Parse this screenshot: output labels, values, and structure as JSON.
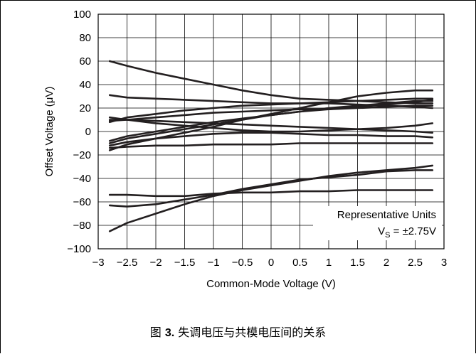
{
  "chart_data": {
    "type": "line",
    "xlabel": "Common-Mode Voltage (V)",
    "ylabel": "Offset Voltage (μV)",
    "xlim": [
      -3,
      3
    ],
    "ylim": [
      -100,
      100
    ],
    "x_ticks": [
      -3,
      -2.5,
      -2,
      -1.5,
      -1,
      -0.5,
      0,
      0.5,
      1,
      1.5,
      2,
      2.5,
      3
    ],
    "x_tick_labels": [
      "−3",
      "−2.5",
      "−2",
      "−1.5",
      "−1",
      "−0.5",
      "0",
      "0.5",
      "1",
      "1.5",
      "2",
      "2.5",
      "3"
    ],
    "y_ticks": [
      100,
      80,
      60,
      40,
      20,
      0,
      -20,
      -40,
      -60,
      -80,
      -100
    ],
    "y_tick_labels": [
      "100",
      "80",
      "60",
      "40",
      "20",
      "0",
      "−20",
      "−40",
      "−60",
      "−80",
      "−100"
    ],
    "grid": true,
    "annotation": {
      "line1": "Representative Units",
      "line2_prefix": "V",
      "line2_sub": "S",
      "line2_suffix": " = ±2.75V"
    },
    "series": [
      {
        "x": [
          -2.8,
          -2.5,
          -2,
          -1.5,
          -1,
          -0.5,
          0,
          0.5,
          1,
          1.5,
          2,
          2.5,
          2.8
        ],
        "values": [
          60,
          56,
          50,
          45,
          40,
          35,
          31,
          28,
          27,
          26,
          25,
          24,
          24
        ]
      },
      {
        "x": [
          -2.8,
          -2.5,
          -2,
          -1.5,
          -1,
          -0.5,
          0,
          0.5,
          1,
          1.5,
          2,
          2.5,
          2.8
        ],
        "values": [
          31,
          29,
          28,
          27,
          26,
          25,
          24,
          24,
          25,
          26,
          27,
          28,
          28
        ]
      },
      {
        "x": [
          -2.8,
          -2.5,
          -2,
          -1.5,
          -1,
          -0.5,
          0,
          0.5,
          1,
          1.5,
          2,
          2.5,
          2.8
        ],
        "values": [
          12,
          10,
          7,
          5,
          3,
          1,
          0,
          0,
          1,
          2,
          3,
          5,
          7
        ]
      },
      {
        "x": [
          -2.8,
          -2.5,
          -2,
          -1.5,
          -1,
          -0.5,
          0,
          0.5,
          1,
          1.5,
          2,
          2.5,
          2.8
        ],
        "values": [
          10,
          10,
          9,
          8,
          7,
          6,
          5,
          4,
          3,
          2,
          1,
          0,
          -1
        ]
      },
      {
        "x": [
          -2.8,
          -2.5,
          -2,
          -1.5,
          -1,
          -0.5,
          0,
          0.5,
          1,
          1.5,
          2,
          2.5,
          2.8
        ],
        "values": [
          -14,
          -13,
          -12,
          -12,
          -11,
          -11,
          -11,
          -10,
          -10,
          -10,
          -10,
          -10,
          -10
        ]
      },
      {
        "x": [
          -2.8,
          -2.5,
          -2,
          -1.5,
          -1,
          -0.5,
          0,
          0.5,
          1,
          1.5,
          2,
          2.5,
          2.8
        ],
        "values": [
          -12,
          -9,
          -6,
          -4,
          -2,
          -1,
          -1,
          -2,
          -3,
          -3,
          -4,
          -4,
          -5
        ]
      },
      {
        "x": [
          -2.8,
          -2.5,
          -2,
          -1.5,
          -1,
          -0.5,
          0,
          0.5,
          1,
          1.5,
          2,
          2.5,
          2.8
        ],
        "values": [
          -10,
          -6,
          -2,
          2,
          6,
          10,
          14,
          17,
          20,
          22,
          24,
          26,
          26
        ]
      },
      {
        "x": [
          -2.8,
          -2.5,
          -2,
          -1.5,
          -1,
          -0.5,
          0,
          0.5,
          1,
          1.5,
          2,
          2.5,
          2.8
        ],
        "values": [
          -8,
          -4,
          0,
          4,
          8,
          11,
          14,
          17,
          19,
          21,
          23,
          25,
          27
        ]
      },
      {
        "x": [
          -2.8,
          -2.5,
          -2,
          -1.5,
          -1,
          -0.5,
          0,
          0.5,
          1,
          1.5,
          2,
          2.5,
          2.8
        ],
        "values": [
          8,
          12,
          15,
          18,
          20,
          22,
          23,
          24,
          24,
          23,
          22,
          21,
          20
        ]
      },
      {
        "x": [
          -2.8,
          -2.5,
          -2,
          -1.5,
          -1,
          -0.5,
          0,
          0.5,
          1,
          1.5,
          2,
          2.5,
          2.8
        ],
        "values": [
          9,
          10,
          12,
          14,
          16,
          17,
          18,
          19,
          19,
          20,
          21,
          22,
          22
        ]
      },
      {
        "x": [
          -2.8,
          -2.5,
          -2,
          -1.5,
          -1,
          -0.5,
          0,
          0.5,
          1,
          1.5,
          2,
          2.5,
          2.8
        ],
        "values": [
          -16,
          -11,
          -6,
          -1,
          4,
          10,
          15,
          20,
          25,
          30,
          33,
          35,
          35
        ]
      },
      {
        "x": [
          -2.8,
          -2.5,
          -2,
          -1.5,
          -1,
          -0.5,
          0,
          0.5,
          1,
          1.5,
          2,
          2.5,
          2.8
        ],
        "values": [
          -85,
          -78,
          -70,
          -62,
          -55,
          -50,
          -46,
          -42,
          -38,
          -35,
          -33,
          -31,
          -29
        ]
      },
      {
        "x": [
          -2.8,
          -2.5,
          -2,
          -1.5,
          -1,
          -0.5,
          0,
          0.5,
          1,
          1.5,
          2,
          2.5,
          2.8
        ],
        "values": [
          -63,
          -64,
          -62,
          -58,
          -54,
          -49,
          -45,
          -41,
          -39,
          -37,
          -34,
          -33,
          -33
        ]
      },
      {
        "x": [
          -2.8,
          -2.5,
          -2,
          -1.5,
          -1,
          -0.5,
          0,
          0.5,
          1,
          1.5,
          2,
          2.5,
          2.8
        ],
        "values": [
          -54,
          -54,
          -55,
          -55,
          -53,
          -52,
          -52,
          -51,
          -51,
          -50,
          -50,
          -50,
          -50
        ]
      }
    ]
  },
  "caption": {
    "prefix": "图 ",
    "number": "3.",
    "text": " 失调电压与共模电压间的关系"
  }
}
